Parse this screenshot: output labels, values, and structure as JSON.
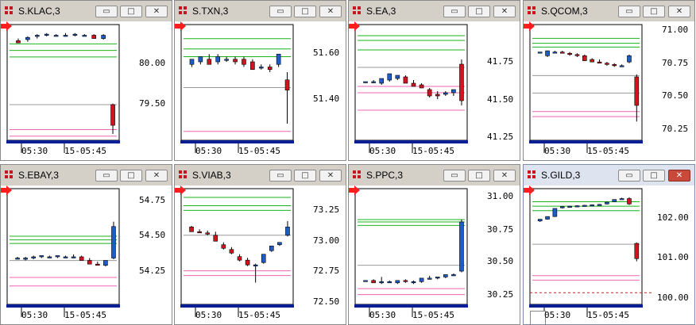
{
  "colors": {
    "up": "#1e5cc8",
    "down": "#d2141e",
    "green": "#19b419",
    "pink": "#f064b4",
    "gray": "#9a9a9a",
    "axis": "#000000",
    "navy": "#0a1e96",
    "arrow": "#ff1e1e",
    "dash": "#c81e1e"
  },
  "icons": {
    "window_icon": "app-logo-icon",
    "minimize": "minimize-icon",
    "maximize": "maximize-icon",
    "close": "close-icon",
    "scroll": "red-arrow-right-icon"
  },
  "x_ticks": [
    "05:30",
    "15-05:45"
  ],
  "windows": [
    {
      "title": "S.KLAC,3",
      "ylabels": [
        "80.00",
        "79.50"
      ]
    },
    {
      "title": "S.TXN,3",
      "ylabels": [
        "51.60",
        "51.40"
      ]
    },
    {
      "title": "S.EA,3",
      "ylabels": [
        "41.75",
        "41.50",
        "41.25"
      ]
    },
    {
      "title": "S.QCOM,3",
      "ylabels": [
        "71.00",
        "70.75",
        "70.50",
        "70.25"
      ]
    },
    {
      "title": "S.EBAY,3",
      "ylabels": [
        "54.75",
        "54.50",
        "54.25"
      ]
    },
    {
      "title": "S.VIAB,3",
      "ylabels": [
        "73.25",
        "73.00",
        "72.75",
        "72.50"
      ]
    },
    {
      "title": "S.PPC,3",
      "ylabels": [
        "31.00",
        "30.75",
        "30.50",
        "30.25"
      ]
    },
    {
      "title": "S.GILD,3",
      "ylabels": [
        "102.00",
        "101.00",
        "100.00"
      ]
    }
  ],
  "chart_data": [
    {
      "type": "candlestick",
      "title": "S.KLAC,3",
      "ylim": [
        79.35,
        80.3
      ],
      "yticks": [
        80.0,
        79.5
      ],
      "xticks": [
        "05:30",
        "15-05:45"
      ],
      "candles": [
        [
          80.21,
          80.23,
          80.19,
          80.19
        ],
        [
          80.22,
          80.25,
          80.2,
          80.24
        ],
        [
          80.25,
          80.27,
          80.23,
          80.26
        ],
        [
          80.26,
          80.28,
          80.25,
          80.27
        ],
        [
          80.26,
          80.27,
          80.25,
          80.26
        ],
        [
          80.26,
          80.28,
          80.25,
          80.26
        ],
        [
          80.26,
          80.28,
          80.25,
          80.27
        ],
        [
          80.26,
          80.27,
          80.25,
          80.26
        ],
        [
          80.26,
          80.27,
          80.23,
          80.23
        ],
        [
          80.23,
          80.27,
          80.22,
          80.26
        ],
        [
          79.62,
          79.63,
          79.35,
          79.43
        ]
      ],
      "levels": {
        "green": [
          80.18,
          80.12,
          80.06
        ],
        "gray": [
          79.62
        ],
        "pink": [
          79.39,
          79.33
        ]
      }
    },
    {
      "type": "candlestick",
      "title": "S.TXN,3",
      "ylim": [
        51.32,
        51.72
      ],
      "yticks": [
        51.6,
        51.4
      ],
      "xticks": [
        "05:30",
        "15-05:45"
      ],
      "candles": [
        [
          51.59,
          51.61,
          51.58,
          51.61
        ],
        [
          51.6,
          51.62,
          51.59,
          51.62
        ],
        [
          51.61,
          51.63,
          51.59,
          51.59
        ],
        [
          51.6,
          51.63,
          51.59,
          51.62
        ],
        [
          51.61,
          51.62,
          51.6,
          51.61
        ],
        [
          51.61,
          51.62,
          51.59,
          51.6
        ],
        [
          51.61,
          51.62,
          51.58,
          51.59
        ],
        [
          51.6,
          51.61,
          51.57,
          51.57
        ],
        [
          51.58,
          51.59,
          51.57,
          51.58
        ],
        [
          51.58,
          51.59,
          51.56,
          51.57
        ],
        [
          51.59,
          51.63,
          51.58,
          51.63
        ],
        [
          51.53,
          51.56,
          51.36,
          51.49
        ]
      ],
      "levels": {
        "green": [
          51.69,
          51.65,
          51.62
        ],
        "gray": [
          51.5
        ],
        "pink": [
          51.33
        ]
      }
    },
    {
      "type": "candlestick",
      "title": "S.EA,3",
      "ylim": [
        41.2,
        41.85
      ],
      "yticks": [
        41.75,
        41.5,
        41.25
      ],
      "xticks": [
        "05:30",
        "15-05:45"
      ],
      "candles": [
        [
          41.53,
          41.53,
          41.53,
          41.53
        ],
        [
          41.53,
          41.54,
          41.52,
          41.53
        ],
        [
          41.52,
          41.55,
          41.51,
          41.55
        ],
        [
          41.54,
          41.58,
          41.53,
          41.58
        ],
        [
          41.55,
          41.57,
          41.54,
          41.57
        ],
        [
          41.56,
          41.57,
          41.52,
          41.52
        ],
        [
          41.52,
          41.54,
          41.5,
          41.5
        ],
        [
          41.51,
          41.52,
          41.49,
          41.49
        ],
        [
          41.48,
          41.49,
          41.43,
          41.44
        ],
        [
          41.45,
          41.47,
          41.42,
          41.44
        ],
        [
          41.45,
          41.47,
          41.44,
          41.46
        ],
        [
          41.46,
          41.48,
          41.44,
          41.48
        ],
        [
          41.64,
          41.67,
          41.38,
          41.41
        ]
      ],
      "levels": {
        "green": [
          41.82,
          41.79,
          41.73
        ],
        "gray": [
          41.62
        ],
        "pink": [
          41.5,
          41.46,
          41.35
        ]
      }
    },
    {
      "type": "candlestick",
      "title": "S.QCOM,3",
      "ylim": [
        70.22,
        71.05
      ],
      "yticks": [
        71.0,
        70.75,
        70.5,
        70.25
      ],
      "xticks": [
        "05:30",
        "15-05:45"
      ],
      "candles": [
        [
          70.88,
          70.88,
          70.88,
          70.88
        ],
        [
          70.85,
          70.89,
          70.84,
          70.89
        ],
        [
          70.88,
          70.89,
          70.87,
          70.88
        ],
        [
          70.88,
          70.89,
          70.87,
          70.87
        ],
        [
          70.87,
          70.88,
          70.85,
          70.86
        ],
        [
          70.86,
          70.87,
          70.84,
          70.85
        ],
        [
          70.85,
          70.86,
          70.81,
          70.81
        ],
        [
          70.82,
          70.83,
          70.8,
          70.8
        ],
        [
          70.8,
          70.82,
          70.79,
          70.79
        ],
        [
          70.79,
          70.8,
          70.77,
          70.78
        ],
        [
          70.78,
          70.79,
          70.76,
          70.77
        ],
        [
          70.77,
          70.78,
          70.76,
          70.77
        ],
        [
          70.8,
          70.86,
          70.79,
          70.85
        ],
        [
          70.68,
          70.7,
          70.32,
          70.45
        ]
      ],
      "levels": {
        "green": [
          70.99,
          70.95,
          70.92
        ],
        "gray": [
          70.69,
          70.55
        ],
        "pink": [
          70.4,
          70.36
        ]
      }
    },
    {
      "type": "candlestick",
      "title": "S.EBAY,3",
      "ylim": [
        54.05,
        54.9
      ],
      "yticks": [
        54.75,
        54.5,
        54.25
      ],
      "xticks": [
        "05:30",
        "15-05:45"
      ],
      "candles": [
        [
          54.38,
          54.39,
          54.37,
          54.38
        ],
        [
          54.37,
          54.39,
          54.36,
          54.38
        ],
        [
          54.38,
          54.4,
          54.37,
          54.39
        ],
        [
          54.39,
          54.4,
          54.38,
          54.4
        ],
        [
          54.39,
          54.4,
          54.38,
          54.39
        ],
        [
          54.39,
          54.4,
          54.38,
          54.4
        ],
        [
          54.39,
          54.4,
          54.38,
          54.39
        ],
        [
          54.39,
          54.41,
          54.38,
          54.39
        ],
        [
          54.39,
          54.4,
          54.36,
          54.36
        ],
        [
          54.36,
          54.38,
          54.33,
          54.33
        ],
        [
          54.33,
          54.35,
          54.32,
          54.32
        ],
        [
          54.32,
          54.36,
          54.31,
          54.36
        ],
        [
          54.38,
          54.68,
          54.37,
          54.64
        ]
      ],
      "levels": {
        "green": [
          54.56,
          54.53,
          54.5
        ],
        "gray": [
          54.36
        ],
        "pink": [
          54.22,
          54.15
        ]
      }
    },
    {
      "type": "candlestick",
      "title": "S.VIAB,3",
      "ylim": [
        72.45,
        73.32
      ],
      "yticks": [
        73.25,
        73.0,
        72.75,
        72.5
      ],
      "xticks": [
        "05:30",
        "15-05:45"
      ],
      "candles": [
        [
          73.05,
          73.06,
          73.01,
          73.01
        ],
        [
          73.01,
          73.03,
          73.0,
          73.0
        ],
        [
          73.0,
          73.02,
          72.98,
          72.99
        ],
        [
          72.98,
          73.01,
          72.93,
          72.93
        ],
        [
          72.9,
          72.92,
          72.86,
          72.87
        ],
        [
          72.86,
          72.88,
          72.82,
          72.83
        ],
        [
          72.8,
          72.82,
          72.76,
          72.77
        ],
        [
          72.77,
          72.79,
          72.72,
          72.73
        ],
        [
          72.72,
          72.74,
          72.58,
          72.73
        ],
        [
          72.75,
          72.82,
          72.74,
          72.82
        ],
        [
          72.85,
          72.89,
          72.84,
          72.89
        ],
        [
          72.9,
          72.92,
          72.89,
          72.92
        ],
        [
          72.98,
          73.1,
          72.97,
          73.05
        ]
      ],
      "levels": {
        "green": [
          73.3,
          73.23,
          73.19
        ],
        "gray": [
          72.98
        ],
        "pink": [
          72.68,
          72.64
        ]
      }
    },
    {
      "type": "candlestick",
      "title": "S.PPC,3",
      "ylim": [
        30.17,
        31.05
      ],
      "yticks": [
        31.0,
        30.75,
        30.5,
        30.25
      ],
      "xticks": [
        "05:30",
        "15-05:45"
      ],
      "candles": [
        [
          30.32,
          30.32,
          30.32,
          30.32
        ],
        [
          30.32,
          30.33,
          30.3,
          30.3
        ],
        [
          30.3,
          30.35,
          30.29,
          30.31
        ],
        [
          30.31,
          30.32,
          30.3,
          30.31
        ],
        [
          30.3,
          30.32,
          30.29,
          30.32
        ],
        [
          30.32,
          30.33,
          30.3,
          30.31
        ],
        [
          30.3,
          30.32,
          30.29,
          30.31
        ],
        [
          30.31,
          30.34,
          30.3,
          30.34
        ],
        [
          30.34,
          30.36,
          30.33,
          30.34
        ],
        [
          30.34,
          30.35,
          30.33,
          30.35
        ],
        [
          30.35,
          30.37,
          30.34,
          30.37
        ],
        [
          30.37,
          30.38,
          30.36,
          30.37
        ],
        [
          30.4,
          30.84,
          30.39,
          30.82
        ]
      ],
      "levels": {
        "green": [
          30.84,
          30.82,
          30.79
        ],
        "gray": [
          30.45
        ],
        "pink": [
          30.25,
          30.2
        ]
      }
    },
    {
      "type": "candlestick",
      "title": "S.GILD,3",
      "ylim": [
        99.9,
        102.2
      ],
      "yticks": [
        102.0,
        101.0,
        100.0
      ],
      "xticks": [
        "05:30",
        "15-05:45"
      ],
      "candles": [
        [
          101.62,
          101.66,
          101.6,
          101.66
        ],
        [
          101.66,
          101.72,
          101.65,
          101.72
        ],
        [
          101.72,
          101.9,
          101.71,
          101.9
        ],
        [
          101.92,
          101.95,
          101.9,
          101.94
        ],
        [
          101.94,
          101.96,
          101.93,
          101.95
        ],
        [
          101.95,
          101.97,
          101.94,
          101.96
        ],
        [
          101.96,
          101.98,
          101.95,
          101.97
        ],
        [
          101.97,
          101.99,
          101.96,
          101.98
        ],
        [
          101.98,
          102.0,
          101.97,
          101.99
        ],
        [
          102.0,
          102.05,
          101.99,
          102.04
        ],
        [
          102.05,
          102.1,
          102.04,
          102.1
        ],
        [
          102.12,
          102.14,
          102.1,
          102.12
        ],
        [
          102.12,
          102.15,
          101.98,
          102.0
        ],
        [
          101.12,
          101.14,
          100.72,
          100.78
        ]
      ],
      "levels": {
        "green": [
          102.05,
          101.95,
          101.85
        ],
        "gray": [
          101.1
        ],
        "pink": [
          100.4,
          100.3
        ],
        "dashed": [
          100.02
        ]
      }
    }
  ]
}
